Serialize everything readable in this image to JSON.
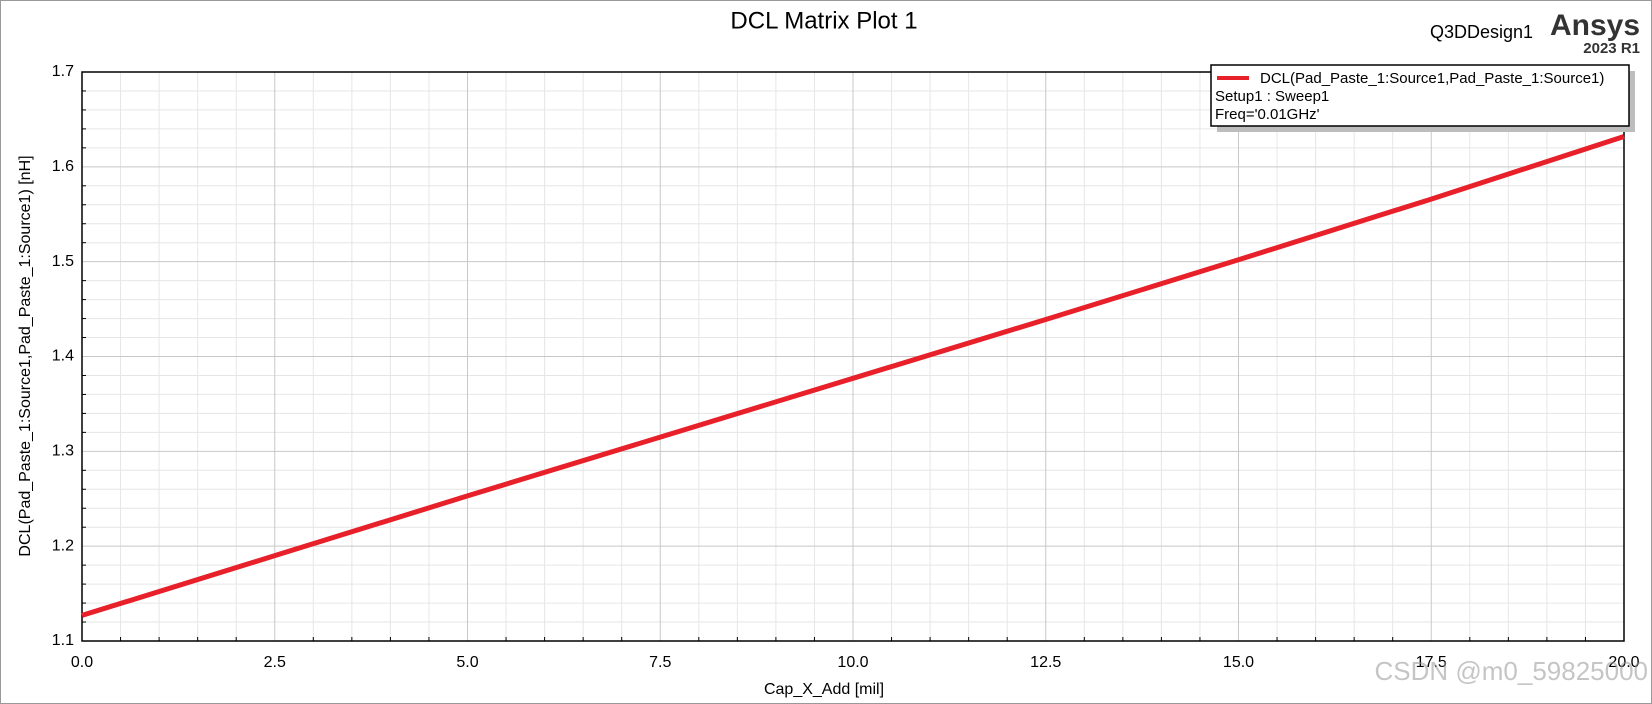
{
  "chart_data": {
    "type": "line",
    "title": "DCL Matrix Plot 1",
    "design_name": "Q3DDesign1",
    "brand": "Ansys",
    "version": "2023 R1",
    "x_label": "Cap_X_Add [mil]",
    "y_label": "DCL(Pad_Paste_1:Source1,Pad_Paste_1:Source1) [nH]",
    "x": [
      0,
      2.5,
      5,
      7.5,
      10,
      12.5,
      15,
      17.5,
      20
    ],
    "series": [
      {
        "name": "DCL(Pad_Paste_1:Source1,Pad_Paste_1:Source1)",
        "color": "#e8202a",
        "values": [
          1.127,
          1.19,
          1.253,
          1.315,
          1.377,
          1.439,
          1.502,
          1.566,
          1.632
        ]
      }
    ],
    "legend_notes": [
      "Setup1 : Sweep1",
      "Freq='0.01GHz'"
    ],
    "xlim": [
      0,
      20
    ],
    "xticks": [
      {
        "value": 0,
        "label": "0.0"
      },
      2.5,
      {
        "value": 5,
        "label": "5.0"
      },
      7.5,
      {
        "value": 10,
        "label": "10.0"
      },
      12.5,
      {
        "value": 15,
        "label": "15.0"
      },
      17.5,
      {
        "value": 20,
        "label": "20.0"
      }
    ],
    "ylim": [
      1.1,
      1.7
    ],
    "yticks": [
      1.1,
      1.2,
      1.3,
      1.4,
      1.5,
      1.6,
      1.7
    ],
    "grid": true,
    "minor_grid": true,
    "legend": "upper right",
    "watermark": "CSDN @m0_59825000"
  }
}
